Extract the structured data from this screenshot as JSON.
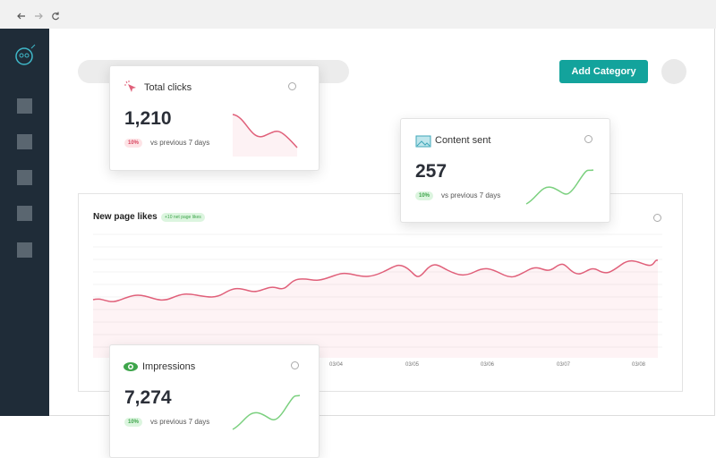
{
  "button": "Add Category",
  "cards": [
    {
      "title": "Total clicks",
      "value": "1,210",
      "change": "10%",
      "comparison": "vs previous 7 days"
    },
    {
      "title": "Content sent",
      "value": "257",
      "change": "10%",
      "comparison": "vs previous 7 days"
    },
    {
      "title": "Impressions",
      "value": "7,274",
      "change": "10%",
      "comparison": "vs previous 7 days"
    }
  ],
  "chart": {
    "title": "New page likes",
    "badge": "+10 net page likes",
    "x_labels": [
      "03/04",
      "03/05",
      "03/06",
      "03/07",
      "03/08"
    ]
  }
}
